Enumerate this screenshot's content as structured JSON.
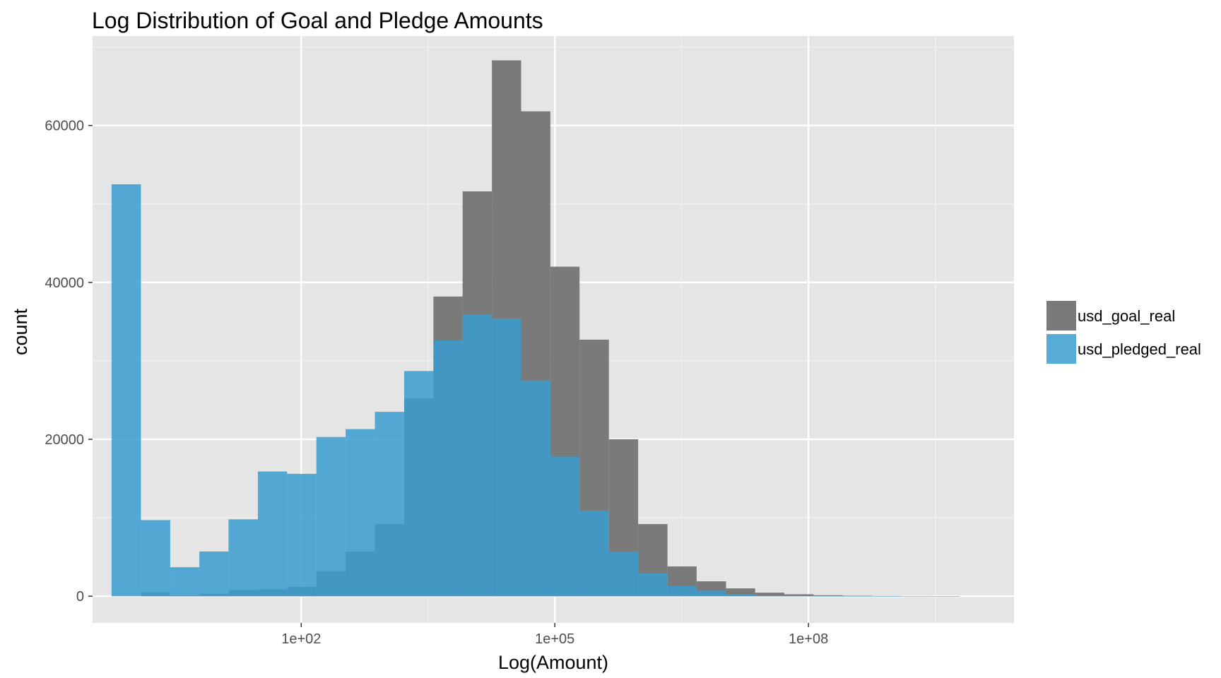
{
  "chart_data": {
    "type": "histogram",
    "title": "Log Distribution of Goal and Pledge Amounts",
    "xlabel": "Log(Amount)",
    "ylabel": "count",
    "x_scale": "log10",
    "x_ticks": [
      {
        "value": 100,
        "label": "1e+02"
      },
      {
        "value": 100000,
        "label": "1e+05"
      },
      {
        "value": 100000000,
        "label": "1e+08"
      }
    ],
    "y_ticks": [
      {
        "value": 0,
        "label": "0"
      },
      {
        "value": 20000,
        "label": "20000"
      },
      {
        "value": 40000,
        "label": "40000"
      },
      {
        "value": 60000,
        "label": "60000"
      }
    ],
    "xlim": [
      0.34,
      27000000000
    ],
    "ylim": [
      -3400,
      71400
    ],
    "bins": 29,
    "bin_edges": [
      0.57,
      1.27,
      2.82,
      6.24,
      13.8,
      30.7,
      68.1,
      151,
      335,
      743,
      1650,
      3660,
      8110,
      18000,
      39900,
      88500,
      196000,
      436000,
      967000,
      2150000,
      4760000,
      10600000,
      23400000,
      51900000,
      115000000,
      256000000,
      567000000,
      1260000000,
      2790000000,
      6200000000
    ],
    "series": [
      {
        "name": "usd_goal_real",
        "color": "#7a7a7a",
        "values": [
          0,
          500,
          100,
          300,
          800,
          900,
          1200,
          3200,
          5700,
          9200,
          25200,
          38200,
          51600,
          68300,
          61800,
          42000,
          32700,
          20000,
          9200,
          3800,
          1900,
          1000,
          450,
          250,
          120,
          70,
          40,
          25,
          15
        ]
      },
      {
        "name": "usd_pledged_real",
        "color": "#3a9dd0",
        "values": [
          52500,
          9700,
          3700,
          5700,
          9800,
          15900,
          15600,
          20300,
          21300,
          23500,
          28700,
          32600,
          35900,
          35400,
          27500,
          17800,
          10900,
          5700,
          2900,
          1300,
          700,
          250,
          100,
          50,
          20,
          10,
          5,
          0,
          0
        ]
      }
    ],
    "legend": {
      "position": "right"
    },
    "grid": true,
    "panel_background": "#e5e5e5"
  }
}
